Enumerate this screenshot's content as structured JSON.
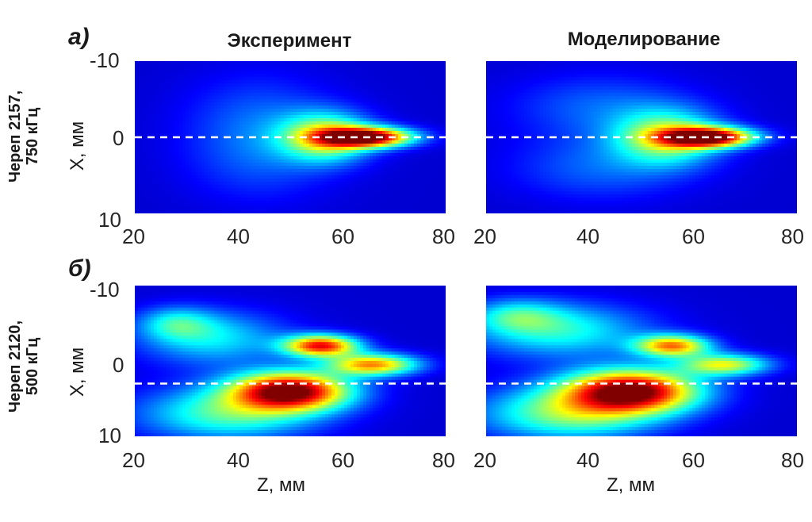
{
  "panels": {
    "a": {
      "label": "a)",
      "row_label_1": "Череп 2157,",
      "row_label_2": "750 кГц"
    },
    "b": {
      "label": "б)",
      "row_label_1": "Череп 2120,",
      "row_label_2": "500 кГц"
    }
  },
  "columns": {
    "left_title": "Эксперимент",
    "right_title": "Моделирование"
  },
  "axes": {
    "xlabel": "Z, мм",
    "ylabel": "X, мм",
    "xticks": [
      "20",
      "40",
      "60",
      "80"
    ],
    "yticks": [
      "-10",
      "0",
      "10"
    ]
  },
  "chart_data": [
    {
      "type": "heatmap",
      "title": "Эксперимент",
      "panel": "a)",
      "xlabel": "",
      "ylabel": "X, мм",
      "xlim": [
        20,
        80
      ],
      "ylim": [
        -10,
        10
      ],
      "colormap": "jet",
      "guide_line_x_value": 0,
      "blobs": [
        {
          "z": 65,
          "x": 0,
          "sz": 6,
          "sx": 0.9,
          "a": 1.0
        },
        {
          "z": 57,
          "x": 0,
          "sz": 6,
          "sx": 2.2,
          "a": 0.55
        },
        {
          "z": 44,
          "x": -3,
          "sz": 10,
          "sx": 4,
          "a": 0.12
        },
        {
          "z": 44,
          "x": 3,
          "sz": 10,
          "sx": 4,
          "a": 0.12
        }
      ]
    },
    {
      "type": "heatmap",
      "title": "Моделирование",
      "panel": "a)",
      "xlabel": "",
      "ylabel": "",
      "xlim": [
        20,
        80
      ],
      "ylim": [
        -10,
        10
      ],
      "colormap": "jet",
      "guide_line_x_value": 0,
      "blobs": [
        {
          "z": 63,
          "x": 0,
          "sz": 6,
          "sx": 0.9,
          "a": 1.0
        },
        {
          "z": 55,
          "x": 0,
          "sz": 7,
          "sx": 2.5,
          "a": 0.5
        },
        {
          "z": 42,
          "x": -4,
          "sz": 12,
          "sx": 3,
          "a": 0.15
        },
        {
          "z": 42,
          "x": 4,
          "sz": 12,
          "sx": 3,
          "a": 0.15
        }
      ]
    },
    {
      "type": "heatmap",
      "title": "",
      "panel": "б)",
      "xlabel": "Z, мм",
      "ylabel": "X, мм",
      "xlim": [
        20,
        80
      ],
      "ylim": [
        -10,
        10
      ],
      "colormap": "jet",
      "guide_line_x_value": 3,
      "blobs": [
        {
          "z": 50,
          "x": 4,
          "sz": 8,
          "sx": 1.8,
          "a": 1.0
        },
        {
          "z": 56,
          "x": -2,
          "sz": 5,
          "sx": 1.0,
          "a": 0.85
        },
        {
          "z": 66,
          "x": 0.5,
          "sz": 6,
          "sx": 1.0,
          "a": 0.7
        },
        {
          "z": 38,
          "x": 7,
          "sz": 12,
          "sx": 2.5,
          "a": 0.4
        },
        {
          "z": 35,
          "x": -3,
          "sz": 10,
          "sx": 2.5,
          "a": 0.3
        },
        {
          "z": 28,
          "x": -5,
          "sz": 5,
          "sx": 1.5,
          "a": 0.25
        }
      ]
    },
    {
      "type": "heatmap",
      "title": "",
      "panel": "б)",
      "xlabel": "Z, мм",
      "ylabel": "",
      "xlim": [
        20,
        80
      ],
      "ylim": [
        -10,
        10
      ],
      "colormap": "jet",
      "guide_line_x_value": 3,
      "blobs": [
        {
          "z": 48,
          "x": 4,
          "sz": 9,
          "sx": 2.0,
          "a": 1.0
        },
        {
          "z": 56,
          "x": -2,
          "sz": 5,
          "sx": 1.0,
          "a": 0.7
        },
        {
          "z": 66,
          "x": 0.5,
          "sz": 6,
          "sx": 1.0,
          "a": 0.55
        },
        {
          "z": 36,
          "x": 7,
          "sz": 12,
          "sx": 2.5,
          "a": 0.45
        },
        {
          "z": 34,
          "x": -4,
          "sz": 12,
          "sx": 2.5,
          "a": 0.35
        },
        {
          "z": 26,
          "x": -6,
          "sz": 6,
          "sx": 1.5,
          "a": 0.25
        }
      ]
    }
  ]
}
